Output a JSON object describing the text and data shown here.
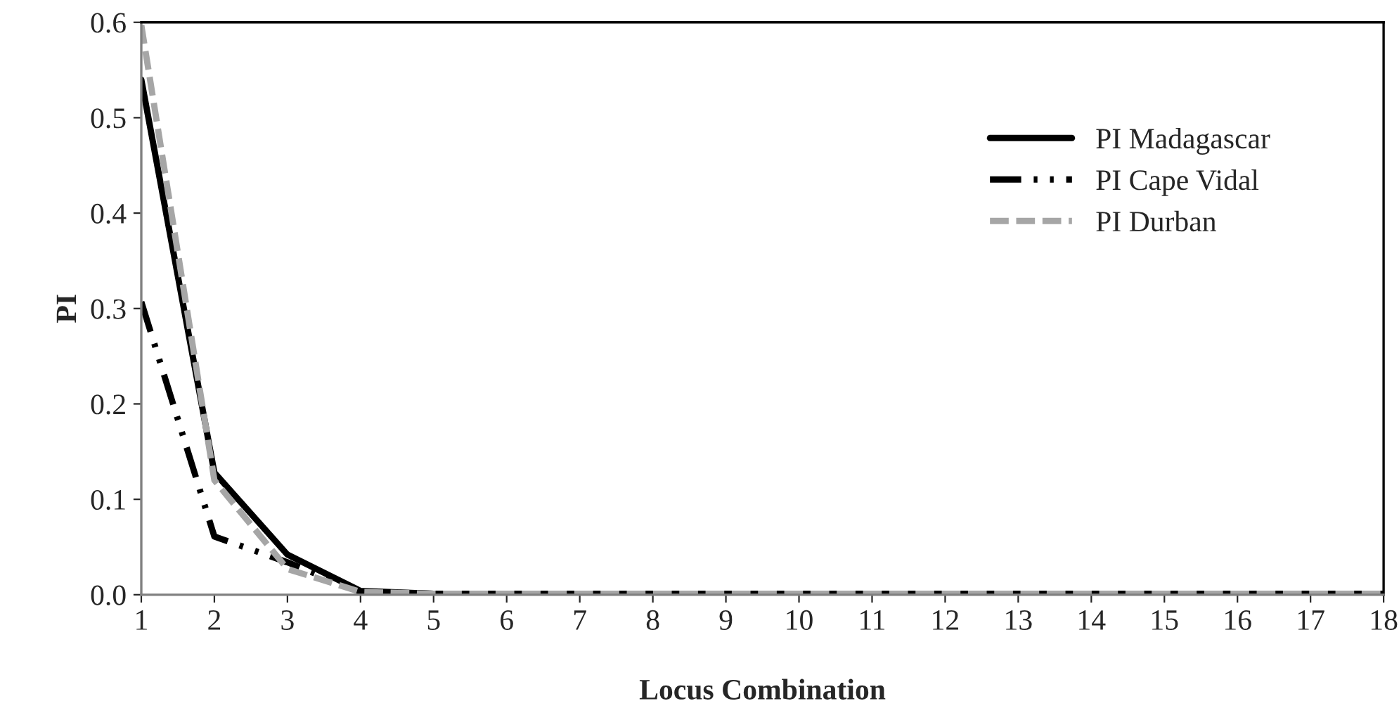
{
  "chart_data": {
    "type": "line",
    "xlabel": "Locus Combination",
    "ylabel": "PI",
    "x": [
      1,
      2,
      3,
      4,
      5,
      6,
      7,
      8,
      9,
      10,
      11,
      12,
      13,
      14,
      15,
      16,
      17,
      18
    ],
    "series": [
      {
        "name": "PI Madagascar",
        "color": "#000000",
        "line_style": "solid",
        "values": [
          0.54,
          0.128,
          0.042,
          0.004,
          0.001,
          0.001,
          0.001,
          0.001,
          0.001,
          0.001,
          0.001,
          0.001,
          0.001,
          0.001,
          0.001,
          0.001,
          0.001,
          0.001
        ]
      },
      {
        "name": "PI Cape Vidal",
        "color": "#000000",
        "line_style": "dashdot",
        "values": [
          0.307,
          0.061,
          0.034,
          0.003,
          0.001,
          0.001,
          0.001,
          0.001,
          0.001,
          0.001,
          0.001,
          0.001,
          0.001,
          0.001,
          0.001,
          0.001,
          0.001,
          0.001
        ]
      },
      {
        "name": "PI Durban",
        "color": "#a6a6a6",
        "line_style": "dashed",
        "values": [
          0.597,
          0.12,
          0.027,
          0.003,
          0.001,
          0.001,
          0.001,
          0.001,
          0.001,
          0.001,
          0.001,
          0.001,
          0.001,
          0.001,
          0.001,
          0.001,
          0.001,
          0.001
        ]
      }
    ],
    "xlim": [
      1,
      18
    ],
    "xticks": [
      1,
      2,
      3,
      4,
      5,
      6,
      7,
      8,
      9,
      10,
      11,
      12,
      13,
      14,
      15,
      16,
      17,
      18
    ],
    "ylim": [
      0,
      0.6
    ],
    "yticks": [
      {
        "value": 0,
        "label": "0.0"
      },
      0.1,
      0.2,
      0.3,
      0.4,
      0.5,
      0.6
    ],
    "grid": false,
    "legend": "right",
    "marker": "none"
  }
}
